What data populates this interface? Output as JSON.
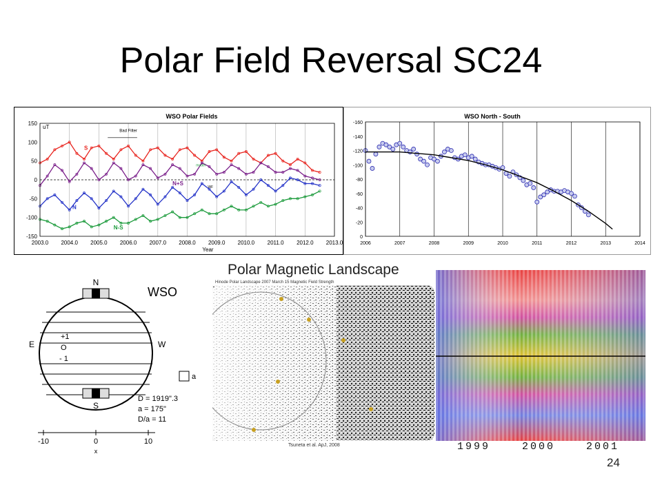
{
  "slide": {
    "title": "Polar Field Reversal SC24",
    "page_number": "24",
    "wso_label": "WSO",
    "landscape_title": "Polar Magnetic Landscape",
    "landscape_subtitle": "Hinode Polar Landscape 2007 March 15 Magnetic Field Strength",
    "landscape_citation": "Tsuneta et al. ApJ, 2008",
    "butterfly_years": [
      "1999",
      "2000",
      "2001"
    ]
  },
  "chart_data": [
    {
      "type": "line",
      "title": "WSO Polar Fields",
      "xlabel": "Year",
      "ylabel": "uT",
      "xlim": [
        2003.0,
        2013.0
      ],
      "ylim": [
        -150,
        150
      ],
      "x_ticks": [
        "2003.0",
        "2004.0",
        "2005.0",
        "2006.0",
        "2007.0",
        "2008.0",
        "2009.0",
        "2010.0",
        "2011.0",
        "2012.0",
        "2013.0"
      ],
      "y_ticks": [
        "150",
        "100",
        "50",
        "0",
        "-50",
        "-100",
        "-150"
      ],
      "annotations": [
        "Bad Filter",
        "model",
        "WF",
        "S",
        "N+S",
        "N",
        "N-S"
      ],
      "grid": "vertical",
      "series": [
        {
          "name": "S",
          "color": "#e8231d",
          "x": [
            2003.0,
            2003.25,
            2003.5,
            2003.75,
            2004.0,
            2004.25,
            2004.5,
            2004.75,
            2005.0,
            2005.25,
            2005.5,
            2005.75,
            2006.0,
            2006.25,
            2006.5,
            2006.75,
            2007.0,
            2007.25,
            2007.5,
            2007.75,
            2008.0,
            2008.25,
            2008.5,
            2008.75,
            2009.0,
            2009.25,
            2009.5,
            2009.75,
            2010.0,
            2010.25,
            2010.5,
            2010.75,
            2011.0,
            2011.25,
            2011.5,
            2011.75,
            2012.0,
            2012.25,
            2012.5
          ],
          "y": [
            45,
            55,
            80,
            90,
            100,
            70,
            55,
            85,
            90,
            70,
            55,
            80,
            90,
            65,
            50,
            80,
            85,
            65,
            55,
            80,
            85,
            65,
            50,
            75,
            80,
            60,
            50,
            70,
            75,
            55,
            45,
            65,
            70,
            50,
            40,
            55,
            45,
            25,
            20
          ]
        },
        {
          "name": "N",
          "color": "#2433c8",
          "x": [
            2003.0,
            2003.25,
            2003.5,
            2003.75,
            2004.0,
            2004.25,
            2004.5,
            2004.75,
            2005.0,
            2005.25,
            2005.5,
            2005.75,
            2006.0,
            2006.25,
            2006.5,
            2006.75,
            2007.0,
            2007.25,
            2007.5,
            2007.75,
            2008.0,
            2008.25,
            2008.5,
            2008.75,
            2009.0,
            2009.25,
            2009.5,
            2009.75,
            2010.0,
            2010.25,
            2010.5,
            2010.75,
            2011.0,
            2011.25,
            2011.5,
            2011.75,
            2012.0,
            2012.25,
            2012.5
          ],
          "y": [
            -70,
            -50,
            -40,
            -60,
            -80,
            -55,
            -35,
            -50,
            -75,
            -55,
            -30,
            -45,
            -70,
            -50,
            -25,
            -40,
            -65,
            -45,
            -20,
            -35,
            -55,
            -40,
            -10,
            -25,
            -45,
            -30,
            -5,
            -20,
            -40,
            -25,
            0,
            -15,
            -30,
            -15,
            5,
            0,
            -10,
            -10,
            -15
          ]
        },
        {
          "name": "N+S",
          "color": "#7a1f8a",
          "x": [
            2003.0,
            2003.25,
            2003.5,
            2003.75,
            2004.0,
            2004.25,
            2004.5,
            2004.75,
            2005.0,
            2005.25,
            2005.5,
            2005.75,
            2006.0,
            2006.25,
            2006.5,
            2006.75,
            2007.0,
            2007.25,
            2007.5,
            2007.75,
            2008.0,
            2008.25,
            2008.5,
            2008.75,
            2009.0,
            2009.25,
            2009.5,
            2009.75,
            2010.0,
            2010.25,
            2010.5,
            2010.75,
            2011.0,
            2011.25,
            2011.5,
            2011.75,
            2012.0,
            2012.25,
            2012.5
          ],
          "y": [
            -15,
            10,
            40,
            25,
            -5,
            15,
            45,
            30,
            0,
            15,
            45,
            30,
            0,
            10,
            40,
            30,
            5,
            15,
            40,
            30,
            10,
            15,
            45,
            35,
            15,
            20,
            40,
            30,
            15,
            20,
            45,
            35,
            20,
            20,
            30,
            25,
            10,
            5,
            0
          ]
        },
        {
          "name": "N-S",
          "color": "#1a9a3a",
          "x": [
            2003.0,
            2003.25,
            2003.5,
            2003.75,
            2004.0,
            2004.25,
            2004.5,
            2004.75,
            2005.0,
            2005.25,
            2005.5,
            2005.75,
            2006.0,
            2006.25,
            2006.5,
            2006.75,
            2007.0,
            2007.25,
            2007.5,
            2007.75,
            2008.0,
            2008.25,
            2008.5,
            2008.75,
            2009.0,
            2009.25,
            2009.5,
            2009.75,
            2010.0,
            2010.25,
            2010.5,
            2010.75,
            2011.0,
            2011.25,
            2011.5,
            2011.75,
            2012.0,
            2012.25,
            2012.5
          ],
          "y": [
            -105,
            -110,
            -120,
            -130,
            -125,
            -115,
            -110,
            -125,
            -120,
            -110,
            -100,
            -115,
            -115,
            -105,
            -95,
            -110,
            -105,
            -95,
            -85,
            -100,
            -100,
            -90,
            -80,
            -90,
            -90,
            -80,
            -70,
            -80,
            -80,
            -70,
            -60,
            -70,
            -65,
            -55,
            -50,
            -50,
            -45,
            -40,
            -30
          ]
        }
      ]
    },
    {
      "type": "scatter",
      "title": "WSO North - South",
      "xlim": [
        2006,
        2014
      ],
      "ylim": [
        0,
        -160
      ],
      "x_ticks": [
        "2006",
        "2007",
        "2008",
        "2009",
        "2010",
        "2011",
        "2012",
        "2013",
        "2014"
      ],
      "y_ticks": [
        "-160",
        "-140",
        "-120",
        "-100",
        "-80",
        "-60",
        "-40",
        "-20",
        "0"
      ],
      "grid": "vertical",
      "series": [
        {
          "color": "#2a2ab0",
          "x": [
            2006.0,
            2006.1,
            2006.2,
            2006.3,
            2006.4,
            2006.5,
            2006.6,
            2006.7,
            2006.8,
            2006.9,
            2007.0,
            2007.1,
            2007.2,
            2007.3,
            2007.4,
            2007.5,
            2007.6,
            2007.7,
            2007.8,
            2007.9,
            2008.0,
            2008.1,
            2008.2,
            2008.3,
            2008.4,
            2008.5,
            2008.6,
            2008.7,
            2008.8,
            2008.9,
            2009.0,
            2009.1,
            2009.2,
            2009.3,
            2009.4,
            2009.5,
            2009.6,
            2009.7,
            2009.8,
            2009.9,
            2010.0,
            2010.1,
            2010.2,
            2010.3,
            2010.4,
            2010.5,
            2010.6,
            2010.7,
            2010.8,
            2010.9,
            2011.0,
            2011.1,
            2011.2,
            2011.3,
            2011.4,
            2011.5,
            2011.6,
            2011.7,
            2011.8,
            2011.9,
            2012.0,
            2012.1,
            2012.2,
            2012.3,
            2012.4,
            2012.5
          ],
          "y": [
            -120,
            -105,
            -95,
            -115,
            -125,
            -130,
            -128,
            -125,
            -122,
            -128,
            -130,
            -125,
            -120,
            -118,
            -122,
            -115,
            -108,
            -105,
            -100,
            -110,
            -108,
            -105,
            -112,
            -118,
            -122,
            -120,
            -110,
            -108,
            -112,
            -114,
            -110,
            -112,
            -108,
            -104,
            -102,
            -100,
            -100,
            -98,
            -96,
            -94,
            -96,
            -88,
            -84,
            -90,
            -86,
            -82,
            -78,
            -72,
            -74,
            -68,
            -48,
            -55,
            -58,
            -62,
            -65,
            -63,
            -63,
            -62,
            -64,
            -62,
            -60,
            -56,
            -44,
            -40,
            -35,
            -30
          ]
        },
        {
          "color": "#000000",
          "x": [
            2006.0,
            2006.5,
            2007.0,
            2007.5,
            2008.0,
            2008.5,
            2009.0,
            2009.5,
            2010.0,
            2010.5,
            2011.0,
            2011.5,
            2012.0,
            2012.5,
            2013.0,
            2013.2
          ],
          "y": [
            -118,
            -118,
            -118,
            -116,
            -114,
            -110,
            -106,
            -100,
            -93,
            -84,
            -75,
            -63,
            -50,
            -35,
            -18,
            -10
          ]
        }
      ]
    }
  ],
  "diagram": {
    "labels": {
      "north": "N",
      "south": "S",
      "east": "E",
      "west": "W",
      "center": "O",
      "plus": "+1",
      "minus": "- 1",
      "box_label": "a"
    },
    "params": [
      "D = 1919\".3",
      "a = 175\"",
      "D/a = 11"
    ],
    "axis_ticks": [
      "-10",
      "0",
      "10"
    ],
    "axis_label": "x"
  }
}
